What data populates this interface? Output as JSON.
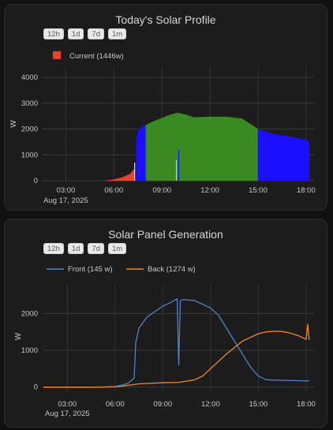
{
  "range_buttons": [
    "12h",
    "1d",
    "7d",
    "1m"
  ],
  "chart_data": [
    {
      "type": "area",
      "title": "Today's Solar Profile",
      "ylabel": "W",
      "xlabel": "",
      "x_ticks": [
        "03:00",
        "06:00",
        "09:00",
        "12:00",
        "15:00",
        "18:00"
      ],
      "x_date_label": "Aug 17, 2025",
      "y_ticks": [
        0,
        1000,
        2000,
        3000,
        4000
      ],
      "ylim": [
        0,
        4400
      ],
      "x_unit": "hour of day",
      "xlim": [
        1.5,
        18.5
      ],
      "grid": true,
      "legend_position": "top-left",
      "series": [
        {
          "name": "Current (1446w)",
          "color": "#e8432b",
          "x": [
            5.5,
            6.0,
            6.5,
            7.0,
            7.2,
            7.3
          ],
          "values": [
            0,
            40,
            120,
            250,
            400,
            450
          ]
        }
      ],
      "unlabeled_segments": [
        {
          "color": "#1a10ff",
          "x": [
            7.4,
            7.5,
            7.6,
            7.8,
            8.0
          ],
          "values": [
            1600,
            1850,
            2000,
            2100,
            2150
          ]
        },
        {
          "color": "#3a8a22",
          "x": [
            8.0,
            8.5,
            9.0,
            9.5,
            10.0,
            10.5,
            11.0,
            12.0,
            13.0,
            14.0,
            15.0
          ],
          "values": [
            2150,
            2300,
            2420,
            2550,
            2620,
            2550,
            2450,
            2470,
            2470,
            2400,
            2000
          ]
        },
        {
          "color": "#1a10ff",
          "x": [
            15.0,
            16.0,
            17.0,
            18.0,
            18.2
          ],
          "values": [
            2000,
            1800,
            1700,
            1580,
            1500
          ]
        }
      ]
    },
    {
      "type": "line",
      "title": "Solar Panel Generation",
      "ylabel": "W",
      "xlabel": "",
      "x_ticks": [
        "06:00",
        "09:00",
        "12:00",
        "15:00",
        "18:00"
      ],
      "x_date_label": "Aug 17, 2025",
      "first_x_label": "03:00",
      "y_ticks": [
        0,
        1000,
        2000
      ],
      "ylim": [
        -50,
        2800
      ],
      "x_unit": "hour of day",
      "xlim": [
        1.5,
        18.5
      ],
      "grid": true,
      "legend_position": "top-left",
      "series": [
        {
          "name": "Front (145 w)",
          "color": "#4e83c6",
          "x": [
            1.5,
            5.0,
            6.0,
            6.8,
            7.2,
            7.3,
            7.5,
            8.0,
            8.5,
            9.0,
            9.5,
            9.9,
            10.0,
            10.1,
            10.3,
            11.0,
            12.0,
            12.5,
            13.0,
            14.0,
            14.5,
            15.0,
            15.5,
            16.0,
            17.0,
            18.0,
            18.2
          ],
          "values": [
            0,
            0,
            10,
            100,
            250,
            1200,
            1600,
            1900,
            2050,
            2200,
            2300,
            2400,
            600,
            2350,
            2380,
            2350,
            2150,
            1950,
            1600,
            900,
            550,
            300,
            200,
            190,
            180,
            170,
            175
          ]
        },
        {
          "name": "Back (1274 w)",
          "color": "#f08a2c",
          "x": [
            1.5,
            5.0,
            6.0,
            6.5,
            7.0,
            7.5,
            8.0,
            9.0,
            10.0,
            11.0,
            11.5,
            12.0,
            13.0,
            14.0,
            15.0,
            15.5,
            16.0,
            16.5,
            17.0,
            17.5,
            18.0,
            18.1,
            18.2
          ],
          "values": [
            0,
            0,
            10,
            30,
            60,
            90,
            100,
            120,
            130,
            200,
            300,
            500,
            900,
            1250,
            1450,
            1500,
            1520,
            1510,
            1470,
            1400,
            1300,
            1700,
            1280
          ]
        }
      ]
    }
  ]
}
